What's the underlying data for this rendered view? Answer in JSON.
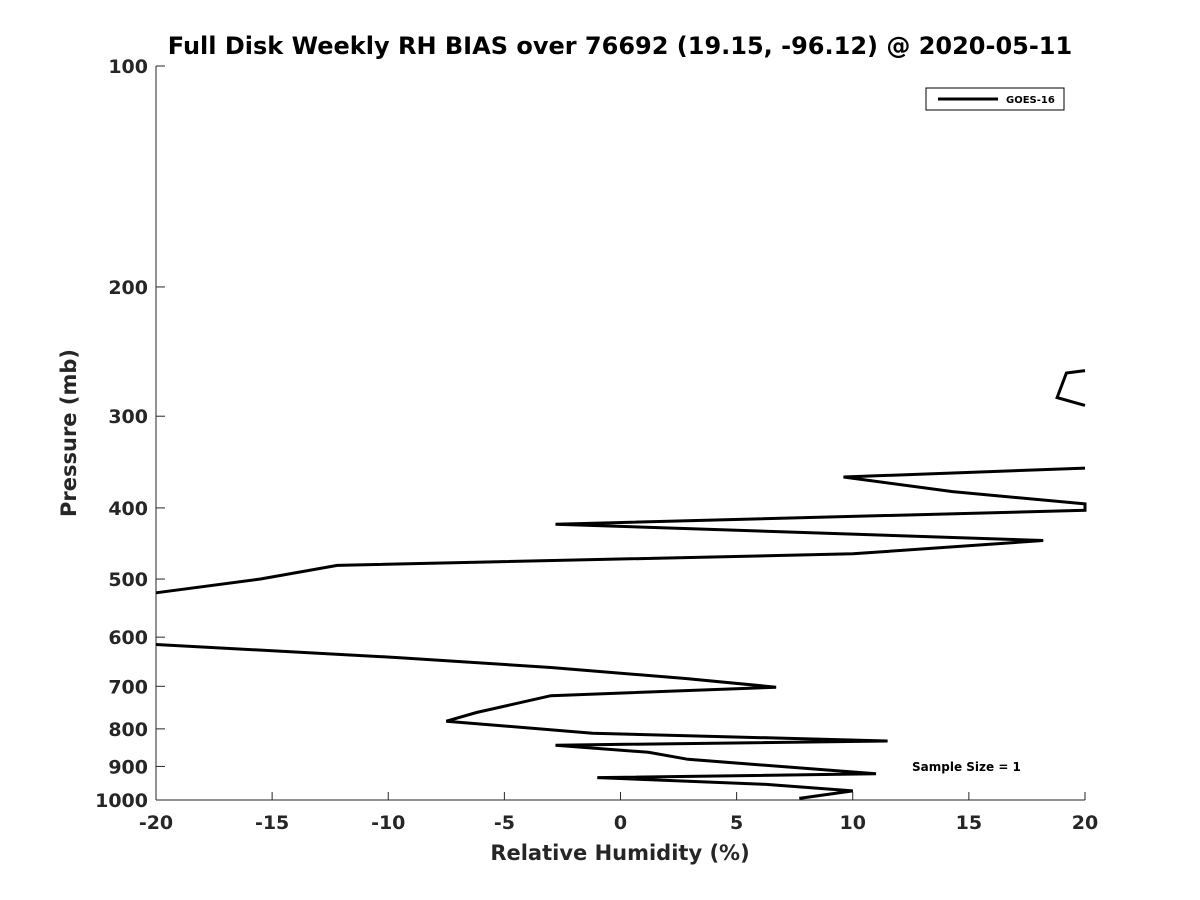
{
  "chart_data": {
    "type": "line",
    "title": "Full Disk Weekly RH BIAS over 76692 (19.15, -96.12) @ 2020-05-11",
    "xlabel": "Relative Humidity (%)",
    "ylabel": "Pressure (mb)",
    "xlim": [
      -20,
      20
    ],
    "ylim": [
      100,
      1000
    ],
    "y_scale": "log",
    "y_reversed": true,
    "grid": false,
    "legend_position": "top-right",
    "x_ticks": [
      "-20",
      "-15",
      "-10",
      "-5",
      "0",
      "5",
      "10",
      "15",
      "20"
    ],
    "y_ticks": [
      "100",
      "200",
      "300",
      "400",
      "500",
      "600",
      "700",
      "800",
      "900",
      "1000"
    ],
    "annotation": "Sample Size = 1",
    "series": [
      {
        "name": "GOES-16",
        "color": "#000000",
        "segments": [
          [
            [
              20,
              260
            ],
            [
              19.2,
              262
            ],
            [
              18.8,
              283
            ],
            [
              20,
              290
            ]
          ],
          [
            [
              20,
              353
            ],
            [
              9.6,
              363
            ],
            [
              14.3,
              380
            ],
            [
              20,
              395
            ],
            [
              20,
              403
            ],
            [
              -2.8,
              421
            ],
            [
              18.2,
              443
            ],
            [
              10,
              462
            ],
            [
              -12.2,
              479
            ],
            [
              -15.5,
              500
            ],
            [
              -20,
              522
            ]
          ],
          [
            [
              -20,
              614
            ],
            [
              -9.5,
              640
            ],
            [
              -3,
              660
            ],
            [
              2.8,
              683
            ],
            [
              6.7,
              702
            ],
            [
              -3,
              721
            ],
            [
              -6.2,
              760
            ],
            [
              -7.5,
              781
            ],
            [
              -1.2,
              811
            ],
            [
              11.5,
              831
            ],
            [
              -2.8,
              842
            ],
            [
              1.2,
              861
            ],
            [
              2.9,
              880
            ],
            [
              11,
              921
            ],
            [
              -1,
              932
            ],
            [
              6.2,
              952
            ],
            [
              10,
              972
            ],
            [
              7.7,
              995
            ]
          ]
        ]
      }
    ]
  }
}
